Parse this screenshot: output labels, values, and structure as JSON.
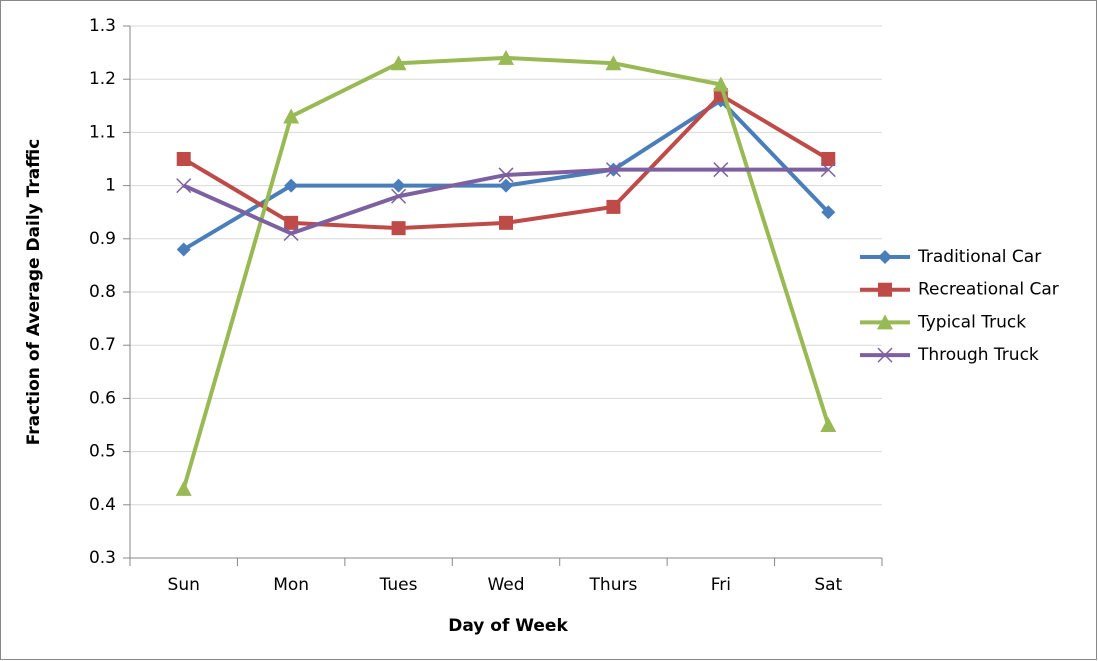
{
  "chart_data": {
    "type": "line",
    "x_label": "Day of Week",
    "y_label": "Fraction of Average Daily Traffic",
    "categories": [
      "Sun",
      "Mon",
      "Tues",
      "Wed",
      "Thurs",
      "Fri",
      "Sat"
    ],
    "series": [
      {
        "name": "Traditional Car",
        "color": "#4a7ebb",
        "marker": "diamond",
        "values": [
          0.88,
          1.0,
          1.0,
          1.0,
          1.03,
          1.16,
          0.95
        ]
      },
      {
        "name": "Recreational Car",
        "color": "#be4b48",
        "marker": "square",
        "values": [
          1.05,
          0.93,
          0.92,
          0.93,
          0.96,
          1.17,
          1.05
        ]
      },
      {
        "name": "Typical Truck",
        "color": "#98b954",
        "marker": "triangle",
        "values": [
          0.43,
          1.13,
          1.23,
          1.24,
          1.23,
          1.19,
          0.55
        ]
      },
      {
        "name": "Through Truck",
        "color": "#7d60a0",
        "marker": "x",
        "values": [
          1.0,
          0.91,
          0.98,
          1.02,
          1.03,
          1.03,
          1.03
        ]
      }
    ],
    "ylim": [
      0.3,
      1.3
    ],
    "yticks": [
      0.3,
      0.4,
      0.5,
      0.6,
      0.7,
      0.8,
      0.9,
      1,
      1.1,
      1.2,
      1.3
    ],
    "grid": true,
    "legend": "right"
  }
}
